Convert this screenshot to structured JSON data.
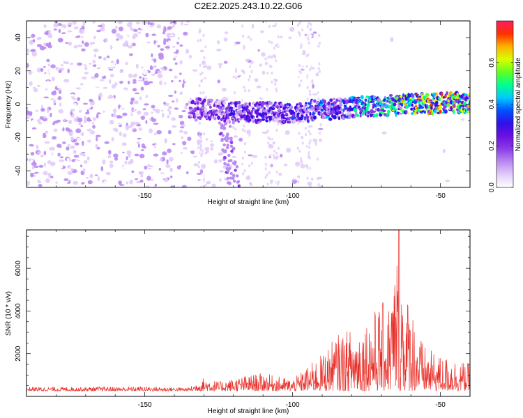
{
  "title": "C2E2.2025.243.10.22.G06",
  "colors": {
    "snr_line": "#e8302a",
    "frame": "#000000",
    "colormap": [
      "#ffffff",
      "#e2ccfa",
      "#b98af2",
      "#8a3de6",
      "#6a10e0",
      "#3010e8",
      "#0050ff",
      "#00c8ff",
      "#00ff90",
      "#60ff20",
      "#d8ff00",
      "#ffb000",
      "#ff3000",
      "#ff1a60"
    ]
  },
  "chart_data": [
    {
      "type": "heatmap",
      "name": "spectrogram",
      "xlabel": "Height of straight line (km)",
      "ylabel": "Frequency (Hz)",
      "xlim": [
        -190,
        -40
      ],
      "ylim": [
        -50,
        50
      ],
      "xticks": [
        -150,
        -100,
        -50
      ],
      "yticks": [
        -40,
        -20,
        0,
        20,
        40
      ],
      "xtick_labels": [
        "-150",
        "-100",
        "-50"
      ],
      "ytick_labels": [
        "-40",
        "-20",
        "0",
        "20",
        "40"
      ],
      "grid": false,
      "colorbar": {
        "label": "Normalized spectral amplitude",
        "range": [
          0,
          0.8
        ],
        "ticks": [
          0.0,
          0.2,
          0.4,
          0.6
        ],
        "tick_labels": [
          "0.0",
          "0.2",
          "0.4",
          "0.6"
        ]
      },
      "features": {
        "noise_region_x": [
          -190,
          -135
        ],
        "sparse_region_x": [
          -135,
          -90
        ],
        "signal_band_center_hz": [
          [
            -135,
            -2
          ],
          [
            -120,
            -5
          ],
          [
            -100,
            -5
          ],
          [
            -80,
            -2
          ],
          [
            -60,
            0
          ],
          [
            -41,
            1
          ]
        ],
        "signal_amplitude": [
          [
            -135,
            0.25
          ],
          [
            -120,
            0.3
          ],
          [
            -100,
            0.33
          ],
          [
            -80,
            0.42
          ],
          [
            -65,
            0.55
          ],
          [
            -55,
            0.7
          ],
          [
            -41,
            0.6
          ]
        ]
      }
    },
    {
      "type": "line",
      "name": "snr",
      "xlabel": "Height of straight line (km)",
      "ylabel": "SNR (10 * v/v)",
      "xlim": [
        -190,
        -40
      ],
      "ylim": [
        0,
        7800
      ],
      "xticks": [
        -150,
        -100,
        -50
      ],
      "yticks": [
        2000,
        4000,
        6000
      ],
      "xtick_labels": [
        "-150",
        "-100",
        "-50"
      ],
      "ytick_labels": [
        "2000",
        "4000",
        "6000"
      ],
      "grid": false,
      "envelope": {
        "x": [
          -190,
          -170,
          -150,
          -135,
          -130,
          -125,
          -115,
          -110,
          -100,
          -95,
          -90,
          -85,
          -80,
          -75,
          -70,
          -67,
          -64,
          -62,
          -60,
          -58,
          -55,
          -50,
          -45,
          -40
        ],
        "max": [
          450,
          450,
          470,
          420,
          900,
          700,
          1000,
          1100,
          800,
          1400,
          2000,
          2900,
          3200,
          3700,
          4400,
          4500,
          7800,
          4700,
          4800,
          3100,
          2300,
          1900,
          1800,
          1500
        ]
      },
      "baseline": 250
    }
  ]
}
